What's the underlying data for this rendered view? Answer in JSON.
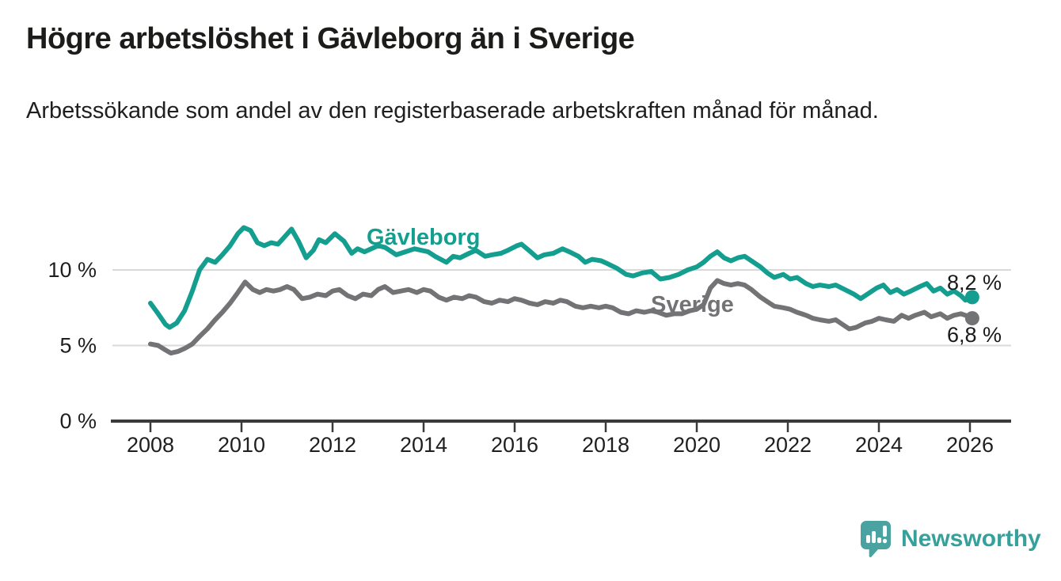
{
  "title": "Högre arbetslöshet i Gävleborg än i Sverige",
  "subtitle": "Arbetssökande som andel av den registerbaserade arbetskraften månad för månad.",
  "branding": {
    "name": "Newsworthy",
    "icon": "bar-chart-speech-bubble-icon",
    "text_color": "#35a19a",
    "bubble_color": "#4ba3a1"
  },
  "colors": {
    "background": "#ffffff",
    "title_text": "#1c1c1a",
    "body_text": "#1f1f1f",
    "axis": "#3a3a3a",
    "gridline": "#d9d9da",
    "gavleborg": "#149e8f",
    "sverige": "#737376"
  },
  "chart_data": {
    "type": "line",
    "title": "Högre arbetslöshet i Gävleborg än i Sverige",
    "subtitle": "Arbetssökande som andel av den registerbaserade arbetskraften månad för månad.",
    "xlabel": "",
    "ylabel": "",
    "unit": "%",
    "x_range": [
      2008,
      2026.05
    ],
    "ylim": [
      0,
      13.5
    ],
    "grid": "horizontal",
    "legend_position": "inline-labels",
    "x_ticks": [
      {
        "value": 2008,
        "label": "2008"
      },
      {
        "value": 2010,
        "label": "2010"
      },
      {
        "value": 2012,
        "label": "2012"
      },
      {
        "value": 2014,
        "label": "2014"
      },
      {
        "value": 2016,
        "label": "2016"
      },
      {
        "value": 2018,
        "label": "2018"
      },
      {
        "value": 2020,
        "label": "2020"
      },
      {
        "value": 2022,
        "label": "2022"
      },
      {
        "value": 2024,
        "label": "2024"
      },
      {
        "value": 2026,
        "label": "2026"
      }
    ],
    "y_ticks": [
      {
        "value": 0,
        "label": "0 %"
      },
      {
        "value": 5,
        "label": "5 %"
      },
      {
        "value": 10,
        "label": "10 %"
      }
    ],
    "series": [
      {
        "name": "Gävleborg",
        "color": "#149e8f",
        "end_value": 8.2,
        "end_label": "8,2 %",
        "points": [
          [
            2008.0,
            7.8
          ],
          [
            2008.17,
            7.1
          ],
          [
            2008.33,
            6.4
          ],
          [
            2008.42,
            6.2
          ],
          [
            2008.58,
            6.5
          ],
          [
            2008.75,
            7.3
          ],
          [
            2008.92,
            8.6
          ],
          [
            2009.08,
            10.0
          ],
          [
            2009.25,
            10.7
          ],
          [
            2009.42,
            10.5
          ],
          [
            2009.58,
            11.0
          ],
          [
            2009.75,
            11.6
          ],
          [
            2009.92,
            12.4
          ],
          [
            2010.05,
            12.8
          ],
          [
            2010.2,
            12.6
          ],
          [
            2010.35,
            11.8
          ],
          [
            2010.5,
            11.6
          ],
          [
            2010.65,
            11.8
          ],
          [
            2010.8,
            11.7
          ],
          [
            2010.95,
            12.2
          ],
          [
            2011.1,
            12.7
          ],
          [
            2011.25,
            11.9
          ],
          [
            2011.42,
            10.8
          ],
          [
            2011.58,
            11.3
          ],
          [
            2011.7,
            12.0
          ],
          [
            2011.85,
            11.8
          ],
          [
            2012.05,
            12.4
          ],
          [
            2012.25,
            11.9
          ],
          [
            2012.42,
            11.1
          ],
          [
            2012.55,
            11.4
          ],
          [
            2012.7,
            11.2
          ],
          [
            2012.85,
            11.4
          ],
          [
            2013.0,
            11.6
          ],
          [
            2013.15,
            11.5
          ],
          [
            2013.4,
            11.0
          ],
          [
            2013.6,
            11.2
          ],
          [
            2013.8,
            11.4
          ],
          [
            2013.95,
            11.3
          ],
          [
            2014.1,
            11.2
          ],
          [
            2014.25,
            10.9
          ],
          [
            2014.5,
            10.5
          ],
          [
            2014.65,
            10.9
          ],
          [
            2014.8,
            10.8
          ],
          [
            2015.0,
            11.1
          ],
          [
            2015.15,
            11.3
          ],
          [
            2015.35,
            10.9
          ],
          [
            2015.5,
            11.0
          ],
          [
            2015.7,
            11.1
          ],
          [
            2015.85,
            11.3
          ],
          [
            2016.05,
            11.6
          ],
          [
            2016.15,
            11.7
          ],
          [
            2016.35,
            11.2
          ],
          [
            2016.5,
            10.8
          ],
          [
            2016.65,
            11.0
          ],
          [
            2016.85,
            11.1
          ],
          [
            2017.05,
            11.4
          ],
          [
            2017.2,
            11.2
          ],
          [
            2017.4,
            10.9
          ],
          [
            2017.55,
            10.5
          ],
          [
            2017.7,
            10.7
          ],
          [
            2017.9,
            10.6
          ],
          [
            2018.05,
            10.4
          ],
          [
            2018.25,
            10.1
          ],
          [
            2018.45,
            9.7
          ],
          [
            2018.6,
            9.6
          ],
          [
            2018.8,
            9.8
          ],
          [
            2019.0,
            9.9
          ],
          [
            2019.2,
            9.4
          ],
          [
            2019.4,
            9.5
          ],
          [
            2019.6,
            9.7
          ],
          [
            2019.8,
            10.0
          ],
          [
            2020.0,
            10.2
          ],
          [
            2020.15,
            10.5
          ],
          [
            2020.3,
            10.9
          ],
          [
            2020.45,
            11.2
          ],
          [
            2020.6,
            10.8
          ],
          [
            2020.75,
            10.6
          ],
          [
            2020.9,
            10.8
          ],
          [
            2021.05,
            10.9
          ],
          [
            2021.2,
            10.6
          ],
          [
            2021.4,
            10.2
          ],
          [
            2021.55,
            9.8
          ],
          [
            2021.7,
            9.5
          ],
          [
            2021.9,
            9.7
          ],
          [
            2022.05,
            9.4
          ],
          [
            2022.2,
            9.5
          ],
          [
            2022.4,
            9.1
          ],
          [
            2022.55,
            8.9
          ],
          [
            2022.7,
            9.0
          ],
          [
            2022.9,
            8.9
          ],
          [
            2023.05,
            9.0
          ],
          [
            2023.25,
            8.7
          ],
          [
            2023.45,
            8.4
          ],
          [
            2023.6,
            8.1
          ],
          [
            2023.8,
            8.5
          ],
          [
            2023.95,
            8.8
          ],
          [
            2024.1,
            9.0
          ],
          [
            2024.25,
            8.5
          ],
          [
            2024.4,
            8.7
          ],
          [
            2024.55,
            8.4
          ],
          [
            2024.7,
            8.6
          ],
          [
            2024.9,
            8.9
          ],
          [
            2025.05,
            9.1
          ],
          [
            2025.2,
            8.6
          ],
          [
            2025.35,
            8.8
          ],
          [
            2025.5,
            8.4
          ],
          [
            2025.65,
            8.6
          ],
          [
            2025.8,
            8.3
          ],
          [
            2025.9,
            8.0
          ],
          [
            2026.05,
            8.2
          ]
        ]
      },
      {
        "name": "Sverige",
        "color": "#737376",
        "end_value": 6.8,
        "end_label": "6,8 %",
        "points": [
          [
            2008.0,
            5.1
          ],
          [
            2008.17,
            5.0
          ],
          [
            2008.33,
            4.7
          ],
          [
            2008.45,
            4.5
          ],
          [
            2008.6,
            4.6
          ],
          [
            2008.75,
            4.8
          ],
          [
            2008.92,
            5.1
          ],
          [
            2009.08,
            5.6
          ],
          [
            2009.25,
            6.1
          ],
          [
            2009.42,
            6.7
          ],
          [
            2009.58,
            7.2
          ],
          [
            2009.75,
            7.8
          ],
          [
            2009.92,
            8.5
          ],
          [
            2010.08,
            9.2
          ],
          [
            2010.25,
            8.7
          ],
          [
            2010.4,
            8.5
          ],
          [
            2010.55,
            8.7
          ],
          [
            2010.7,
            8.6
          ],
          [
            2010.85,
            8.7
          ],
          [
            2011.0,
            8.9
          ],
          [
            2011.15,
            8.7
          ],
          [
            2011.33,
            8.1
          ],
          [
            2011.5,
            8.2
          ],
          [
            2011.67,
            8.4
          ],
          [
            2011.85,
            8.3
          ],
          [
            2012.0,
            8.6
          ],
          [
            2012.15,
            8.7
          ],
          [
            2012.33,
            8.3
          ],
          [
            2012.5,
            8.1
          ],
          [
            2012.67,
            8.4
          ],
          [
            2012.85,
            8.3
          ],
          [
            2013.0,
            8.7
          ],
          [
            2013.15,
            8.9
          ],
          [
            2013.33,
            8.5
          ],
          [
            2013.5,
            8.6
          ],
          [
            2013.67,
            8.7
          ],
          [
            2013.85,
            8.5
          ],
          [
            2014.0,
            8.7
          ],
          [
            2014.15,
            8.6
          ],
          [
            2014.33,
            8.2
          ],
          [
            2014.5,
            8.0
          ],
          [
            2014.67,
            8.2
          ],
          [
            2014.85,
            8.1
          ],
          [
            2015.0,
            8.3
          ],
          [
            2015.15,
            8.2
          ],
          [
            2015.33,
            7.9
          ],
          [
            2015.5,
            7.8
          ],
          [
            2015.67,
            8.0
          ],
          [
            2015.85,
            7.9
          ],
          [
            2016.0,
            8.1
          ],
          [
            2016.15,
            8.0
          ],
          [
            2016.33,
            7.8
          ],
          [
            2016.5,
            7.7
          ],
          [
            2016.67,
            7.9
          ],
          [
            2016.85,
            7.8
          ],
          [
            2017.0,
            8.0
          ],
          [
            2017.15,
            7.9
          ],
          [
            2017.33,
            7.6
          ],
          [
            2017.5,
            7.5
          ],
          [
            2017.67,
            7.6
          ],
          [
            2017.85,
            7.5
          ],
          [
            2018.0,
            7.6
          ],
          [
            2018.15,
            7.5
          ],
          [
            2018.33,
            7.2
          ],
          [
            2018.5,
            7.1
          ],
          [
            2018.67,
            7.3
          ],
          [
            2018.85,
            7.2
          ],
          [
            2019.0,
            7.3
          ],
          [
            2019.15,
            7.2
          ],
          [
            2019.33,
            7.0
          ],
          [
            2019.5,
            7.1
          ],
          [
            2019.67,
            7.1
          ],
          [
            2019.85,
            7.3
          ],
          [
            2020.0,
            7.4
          ],
          [
            2020.15,
            7.7
          ],
          [
            2020.3,
            8.8
          ],
          [
            2020.45,
            9.3
          ],
          [
            2020.6,
            9.1
          ],
          [
            2020.75,
            9.0
          ],
          [
            2020.9,
            9.1
          ],
          [
            2021.05,
            9.0
          ],
          [
            2021.2,
            8.7
          ],
          [
            2021.4,
            8.2
          ],
          [
            2021.55,
            7.9
          ],
          [
            2021.7,
            7.6
          ],
          [
            2021.9,
            7.5
          ],
          [
            2022.05,
            7.4
          ],
          [
            2022.2,
            7.2
          ],
          [
            2022.4,
            7.0
          ],
          [
            2022.55,
            6.8
          ],
          [
            2022.7,
            6.7
          ],
          [
            2022.9,
            6.6
          ],
          [
            2023.05,
            6.7
          ],
          [
            2023.2,
            6.4
          ],
          [
            2023.35,
            6.1
          ],
          [
            2023.5,
            6.2
          ],
          [
            2023.7,
            6.5
          ],
          [
            2023.85,
            6.6
          ],
          [
            2024.0,
            6.8
          ],
          [
            2024.15,
            6.7
          ],
          [
            2024.33,
            6.6
          ],
          [
            2024.5,
            7.0
          ],
          [
            2024.65,
            6.8
          ],
          [
            2024.8,
            7.0
          ],
          [
            2025.0,
            7.2
          ],
          [
            2025.15,
            6.9
          ],
          [
            2025.35,
            7.1
          ],
          [
            2025.5,
            6.8
          ],
          [
            2025.65,
            7.0
          ],
          [
            2025.8,
            7.1
          ],
          [
            2025.9,
            7.0
          ],
          [
            2026.05,
            6.8
          ]
        ]
      }
    ]
  }
}
